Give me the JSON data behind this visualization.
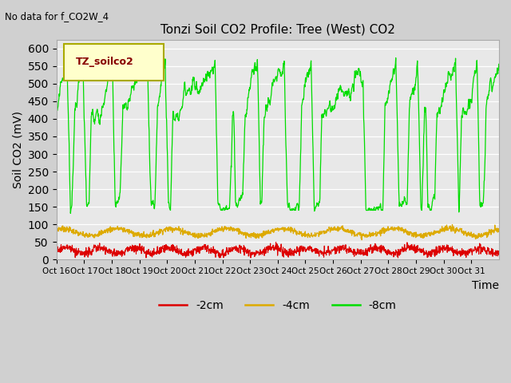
{
  "title": "Tonzi Soil CO2 Profile: Tree (West) CO2",
  "top_left_note": "No data for f_CO2W_4",
  "ylabel": "Soil CO2 (mV)",
  "xlabel": "Time",
  "legend_title": "TZ_soilco2",
  "ylim": [
    0,
    625
  ],
  "yticks": [
    0,
    50,
    100,
    150,
    200,
    250,
    300,
    350,
    400,
    450,
    500,
    550,
    600
  ],
  "xtick_labels": [
    "Oct 16",
    "Oct 17",
    "Oct 18",
    "Oct 19",
    "Oct 20",
    "Oct 21",
    "Oct 22",
    "Oct 23",
    "Oct 24",
    "Oct 25",
    "Oct 26",
    "Oct 27",
    "Oct 28",
    "Oct 29",
    "Oct 30",
    "Oct 31"
  ],
  "line_colors": {
    "2cm": "#dd0000",
    "4cm": "#ddaa00",
    "8cm": "#00dd00"
  },
  "legend_labels": [
    "-2cm",
    "-4cm",
    "-8cm"
  ],
  "plot_bg_color": "#e8e8e8",
  "grid_color": "#ffffff",
  "legend_box_color": "#ffffcc",
  "legend_box_edge": "#aaaa00",
  "fig_bg_color": "#d0d0d0"
}
